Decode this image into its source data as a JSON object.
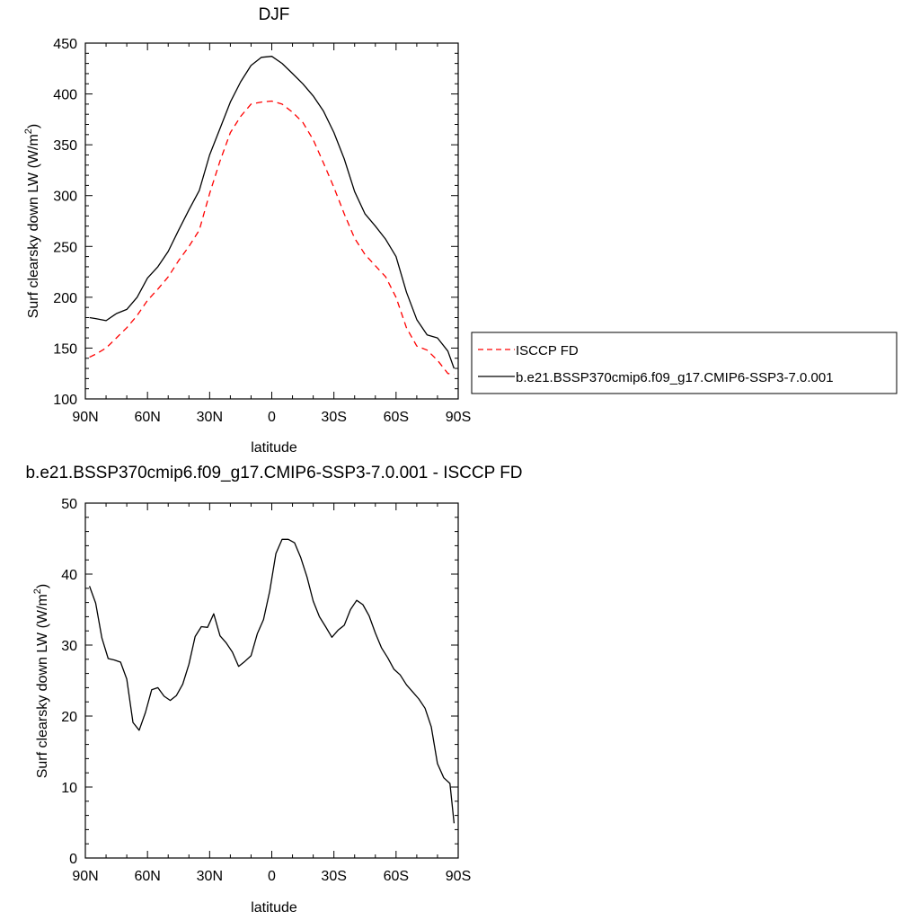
{
  "chart_data": [
    {
      "type": "line",
      "title": "DJF",
      "xlabel": "latitude",
      "ylabel": "Surf clearsky down LW (W/m",
      "ylabel_sup": "2",
      "ylabel_end": ")",
      "xlim": [
        90,
        -90
      ],
      "ylim": [
        100,
        450
      ],
      "x_ticks": [
        90,
        60,
        30,
        0,
        -30,
        -60,
        -90
      ],
      "x_tick_labels": [
        "90N",
        "60N",
        "30N",
        "0",
        "30S",
        "60S",
        "90S"
      ],
      "y_ticks": [
        100,
        150,
        200,
        250,
        300,
        350,
        400,
        450
      ],
      "y_tick_labels": [
        "100",
        "150",
        "200",
        "250",
        "300",
        "350",
        "400",
        "450"
      ],
      "legend_position": "right",
      "series": [
        {
          "name": "ISCCP FD",
          "color": "#ff0000",
          "dash": "dashed",
          "x": [
            88,
            85,
            80,
            75,
            70,
            65,
            60,
            55,
            50,
            45,
            40,
            35,
            30,
            25,
            20,
            15,
            10,
            5,
            0,
            -5,
            -10,
            -15,
            -20,
            -25,
            -30,
            -35,
            -40,
            -45,
            -50,
            -55,
            -60,
            -65,
            -70,
            -75,
            -80,
            -85,
            -88
          ],
          "y": [
            141,
            144,
            150,
            160,
            170,
            182,
            197,
            208,
            220,
            236,
            250,
            266,
            302,
            334,
            362,
            378,
            390,
            392,
            393,
            390,
            382,
            372,
            355,
            332,
            308,
            282,
            258,
            242,
            231,
            220,
            200,
            170,
            152,
            148,
            138,
            125,
            124
          ]
        },
        {
          "name": "b.e21.BSSP370cmip6.f09_g17.CMIP6-SSP3-7.0.001",
          "color": "#000000",
          "dash": "solid",
          "x": [
            88,
            85,
            80,
            75,
            70,
            65,
            60,
            55,
            50,
            45,
            40,
            35,
            30,
            25,
            20,
            15,
            10,
            5,
            0,
            -5,
            -10,
            -15,
            -20,
            -25,
            -30,
            -35,
            -40,
            -45,
            -50,
            -55,
            -60,
            -65,
            -70,
            -75,
            -80,
            -85,
            -88
          ],
          "y": [
            180,
            179,
            177,
            184,
            188,
            200,
            219,
            230,
            245,
            266,
            286,
            305,
            340,
            366,
            392,
            412,
            428,
            436,
            437,
            430,
            420,
            410,
            398,
            383,
            362,
            336,
            304,
            282,
            270,
            257,
            240,
            205,
            178,
            163,
            160,
            147,
            130
          ]
        }
      ]
    },
    {
      "type": "line",
      "title": "b.e21.BSSP370cmip6.f09_g17.CMIP6-SSP3-7.0.001 - ISCCP FD",
      "xlabel": "latitude",
      "ylabel": "Surf clearsky down LW (W/m",
      "ylabel_sup": "2",
      "ylabel_end": ")",
      "xlim": [
        90,
        -90
      ],
      "ylim": [
        0,
        50
      ],
      "x_ticks": [
        90,
        60,
        30,
        0,
        -30,
        -60,
        -90
      ],
      "x_tick_labels": [
        "90N",
        "60N",
        "30N",
        "0",
        "30S",
        "60S",
        "90S"
      ],
      "y_ticks": [
        0,
        10,
        20,
        30,
        40,
        50
      ],
      "y_tick_labels": [
        "0",
        "10",
        "20",
        "30",
        "40",
        "50"
      ],
      "series": [
        {
          "color": "#000000",
          "dash": "solid",
          "x": [
            88,
            85,
            82,
            79,
            76,
            73,
            70,
            67,
            64,
            61,
            58,
            55,
            52,
            49,
            46,
            43,
            40,
            37,
            34,
            31,
            28,
            25,
            22,
            19,
            16,
            13,
            10,
            7,
            4,
            1,
            -2,
            -5,
            -8,
            -11,
            -14,
            -17,
            -20,
            -23,
            -26,
            -29,
            -32,
            -35,
            -38,
            -41,
            -44,
            -47,
            -50,
            -53,
            -56,
            -59,
            -62,
            -65,
            -68,
            -71,
            -74,
            -77,
            -80,
            -83,
            -86,
            -88
          ],
          "y": [
            38.3,
            35.9,
            31.0,
            28.1,
            27.9,
            27.6,
            25.2,
            19.1,
            18.0,
            20.5,
            23.7,
            24.0,
            22.8,
            22.2,
            22.9,
            24.5,
            27.3,
            31.2,
            32.6,
            32.5,
            34.4,
            31.3,
            30.3,
            29.0,
            27.0,
            27.7,
            28.5,
            31.6,
            33.6,
            37.6,
            42.9,
            44.9,
            44.9,
            44.4,
            42.3,
            39.6,
            36.2,
            34.0,
            32.6,
            31.1,
            32.1,
            32.8,
            35.0,
            36.3,
            35.7,
            34.1,
            31.7,
            29.6,
            28.2,
            26.6,
            25.8,
            24.4,
            23.4,
            22.4,
            21.1,
            18.5,
            13.3,
            11.3,
            10.5,
            4.9
          ]
        }
      ]
    }
  ]
}
